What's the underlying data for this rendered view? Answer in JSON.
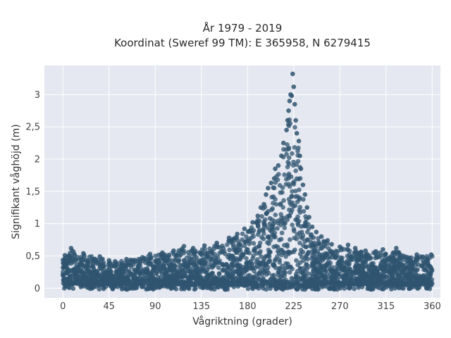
{
  "chart_data": {
    "type": "scatter",
    "title": "År 1979 - 2019",
    "subtitle": "Koordinat (Sweref 99 TM): E 365958, N 6279415",
    "xlabel": "Vågriktning (grader)",
    "ylabel": "Signifikant våghöjd (m)",
    "xlim": [
      -18,
      368
    ],
    "ylim": [
      -0.15,
      3.45
    ],
    "x_ticks": [
      0,
      45,
      90,
      135,
      180,
      225,
      270,
      315,
      360
    ],
    "x_tick_labels": [
      "0",
      "45",
      "90",
      "135",
      "180",
      "225",
      "270",
      "315",
      "360"
    ],
    "y_ticks": [
      0,
      0.5,
      1,
      1.5,
      2,
      2.5,
      3
    ],
    "y_tick_labels": [
      "0",
      "0,5",
      "1",
      "1,5",
      "2",
      "2,5",
      "3"
    ],
    "grid": true,
    "marker_color": "#2f5470",
    "plot_background": "#e5e8f0",
    "grid_color": "#ffffff",
    "series": [
      {
        "points": [
          [
            2,
            0.51
          ],
          [
            8,
            0.62
          ],
          [
            20,
            0.54
          ],
          [
            36,
            0.49
          ],
          [
            45,
            0.43
          ],
          [
            62,
            0.45
          ],
          [
            85,
            0.53
          ],
          [
            97,
            0.55
          ],
          [
            108,
            0.58
          ],
          [
            118,
            0.65
          ],
          [
            127,
            0.62
          ],
          [
            138,
            0.66
          ],
          [
            150,
            0.7
          ],
          [
            162,
            0.78
          ],
          [
            170,
            0.84
          ],
          [
            177,
            0.92
          ],
          [
            185,
            1.02
          ],
          [
            190,
            1.12
          ],
          [
            193,
            1.25
          ],
          [
            196,
            1.3
          ],
          [
            198,
            1.45
          ],
          [
            200,
            1.55
          ],
          [
            203,
            1.63
          ],
          [
            206,
            1.7
          ],
          [
            207,
            1.85
          ],
          [
            210,
            1.9
          ],
          [
            213,
            2.05
          ],
          [
            215,
            2.25
          ],
          [
            218,
            2.45
          ],
          [
            219,
            2.6
          ],
          [
            220,
            2.75
          ],
          [
            221,
            2.9
          ],
          [
            222,
            3.0
          ],
          [
            223,
            2.98
          ],
          [
            224,
            3.32
          ],
          [
            225,
            3.12
          ],
          [
            226,
            2.85
          ],
          [
            227,
            2.6
          ],
          [
            228,
            2.4
          ],
          [
            230,
            2.28
          ],
          [
            231,
            2.05
          ],
          [
            232,
            1.85
          ],
          [
            234,
            1.6
          ],
          [
            236,
            1.45
          ],
          [
            238,
            1.25
          ],
          [
            240,
            1.1
          ],
          [
            243,
            0.95
          ],
          [
            247,
            0.87
          ],
          [
            252,
            0.8
          ],
          [
            258,
            0.74
          ],
          [
            262,
            0.68
          ],
          [
            270,
            0.64
          ],
          [
            278,
            0.67
          ],
          [
            285,
            0.62
          ],
          [
            295,
            0.58
          ],
          [
            305,
            0.57
          ],
          [
            312,
            0.6
          ],
          [
            322,
            0.55
          ],
          [
            325,
            0.62
          ],
          [
            332,
            0.5
          ],
          [
            345,
            0.52
          ],
          [
            359,
            0.52
          ]
        ]
      }
    ]
  }
}
